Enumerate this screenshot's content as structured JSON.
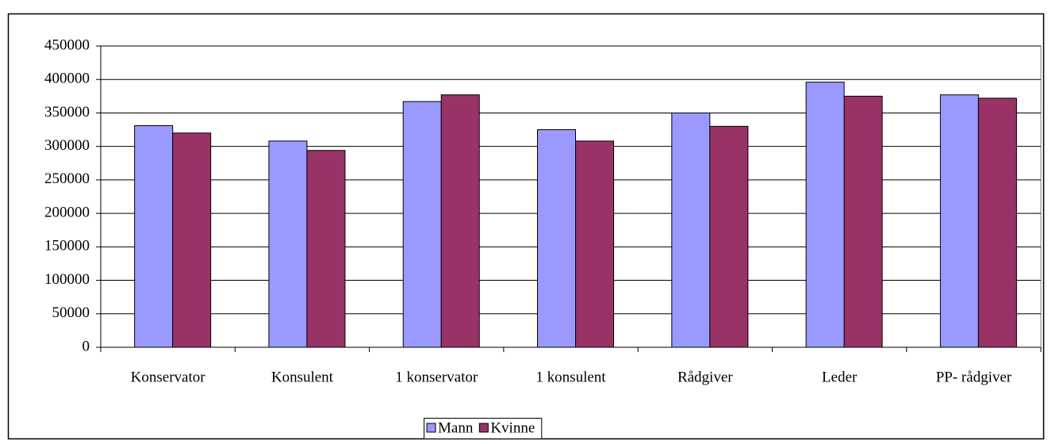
{
  "chart_data": {
    "type": "bar",
    "categories": [
      "Konservator",
      "Konsulent",
      "1 konservator",
      "1 konsulent",
      "Rådgiver",
      "Leder",
      "PP- rådgiver"
    ],
    "series": [
      {
        "name": "Mann",
        "color": "#9999ff",
        "values": [
          331000,
          308000,
          367000,
          325000,
          350000,
          396000,
          377000
        ]
      },
      {
        "name": "Kvinne",
        "color": "#993366",
        "values": [
          320000,
          294000,
          377000,
          308000,
          330000,
          375000,
          372000
        ]
      }
    ],
    "ylim": [
      0,
      450000
    ],
    "yticks": [
      0,
      50000,
      100000,
      150000,
      200000,
      250000,
      300000,
      350000,
      400000,
      450000
    ],
    "grid": true,
    "legend": "bottom"
  }
}
